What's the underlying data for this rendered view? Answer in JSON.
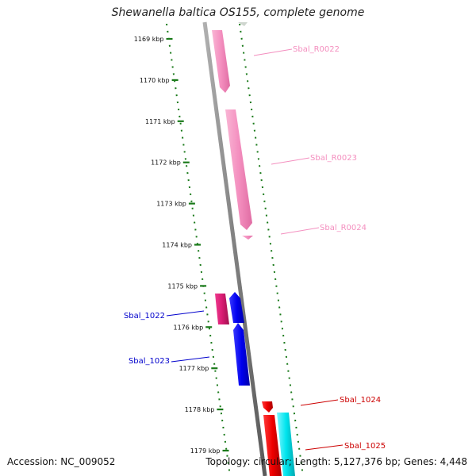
{
  "title": "Shewanella baltica OS155, complete genome",
  "ticks": [
    "1169 kbp",
    "1170 kbp",
    "1171 kbp",
    "1172 kbp",
    "1173 kbp",
    "1174 kbp",
    "1175 kbp",
    "1176 kbp",
    "1177 kbp",
    "1178 kbp",
    "1179 kbp"
  ],
  "features": [
    {
      "name": "Sbal_R0022",
      "color": "#f48fbf",
      "strand": "+",
      "type": "rRNA"
    },
    {
      "name": "Sbal_R0023",
      "color": "#f48fbf",
      "strand": "+",
      "type": "rRNA"
    },
    {
      "name": "Sbal_R0024",
      "color": "#f48fbf",
      "strand": "+",
      "type": "rRNA"
    },
    {
      "name": "Sbal_1022",
      "color": "#0000cc",
      "strand": "-",
      "type": "CDS"
    },
    {
      "name": "Sbal_1023",
      "color": "#0000cc",
      "strand": "-",
      "type": "CDS"
    },
    {
      "name": "Sbal_1024",
      "color": "#cc0000",
      "strand": "+",
      "type": "CDS"
    },
    {
      "name": "Sbal_1025",
      "color": "#cc0000",
      "strand": "+",
      "type": "CDS"
    }
  ],
  "footer": {
    "accession": "Accession: NC_009052",
    "topology": "Topology: circular; Length: 5,127,376 bp; Genes: 4,448"
  },
  "colors": {
    "backbone": "#8a8a8a",
    "tick_ruler": "#1a7a1a",
    "rrna": "#f48fbf",
    "magenta_cds": "#d81b72",
    "blue_cds": "#0000ee",
    "red_cds": "#ee0000",
    "cyan_cds": "#00e5ee"
  }
}
